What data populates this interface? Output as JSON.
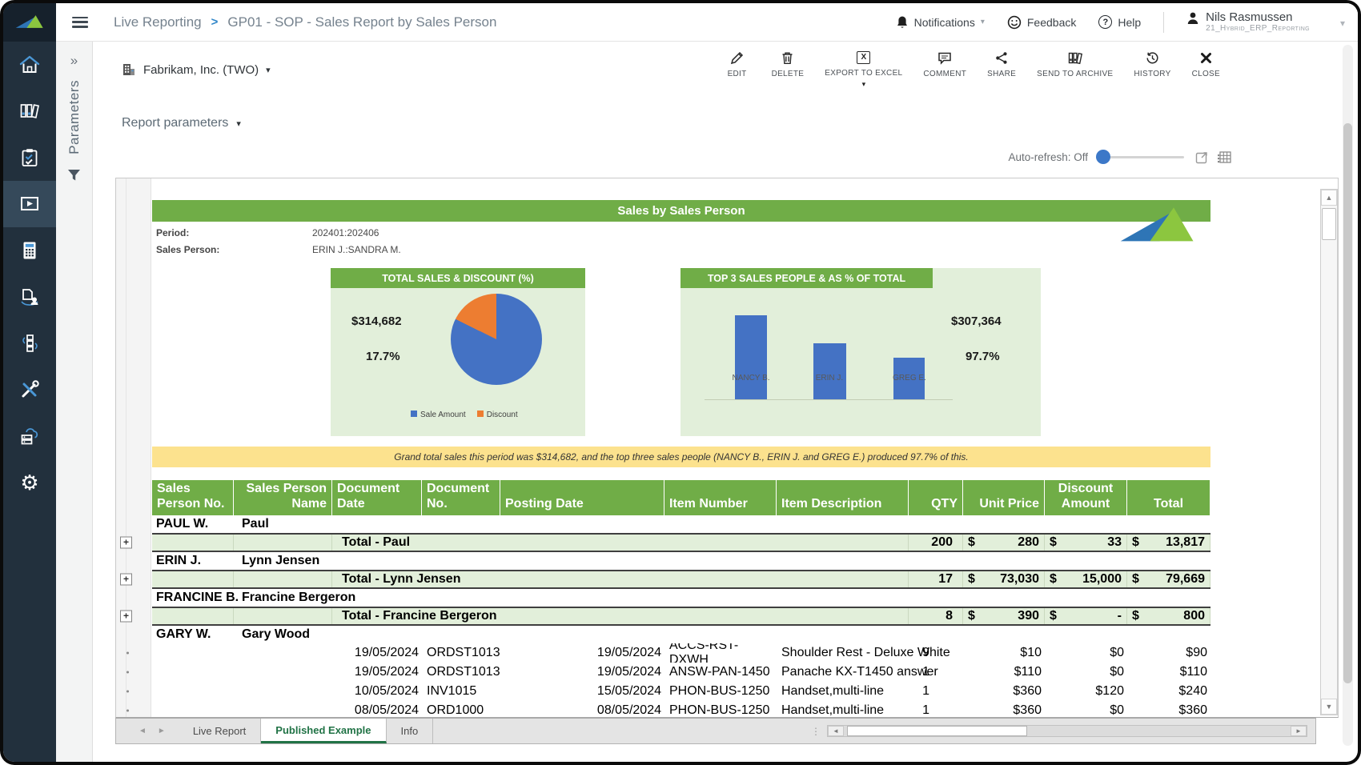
{
  "topbar": {
    "breadcrumb": {
      "section": "Live Reporting",
      "separator": ">",
      "page": "GP01 - SOP - Sales Report by Sales Person"
    },
    "notifications_label": "Notifications",
    "feedback_label": "Feedback",
    "help_label": "Help",
    "help_glyph": "?",
    "user": {
      "name": "Nils Rasmussen",
      "org": "21_Hybrid_ERP_Reporting"
    }
  },
  "sidebar": {
    "icons": [
      "home",
      "document-archive",
      "checklist",
      "live-reporting",
      "calculator",
      "document-user",
      "integrations",
      "admin-tools",
      "data-warehouse",
      "settings"
    ],
    "active": "live-reporting"
  },
  "params_panel": {
    "label": "Parameters"
  },
  "toolbar": {
    "company": "Fabrikam, Inc. (TWO)",
    "actions": [
      {
        "label": "EDIT"
      },
      {
        "label": "DELETE"
      },
      {
        "label": "EXPORT TO EXCEL"
      },
      {
        "label": "COMMENT"
      },
      {
        "label": "SHARE"
      },
      {
        "label": "SEND TO ARCHIVE"
      },
      {
        "label": "HISTORY"
      },
      {
        "label": "CLOSE"
      }
    ]
  },
  "report_parameters": {
    "label": "Report parameters"
  },
  "auto_refresh": {
    "label": "Auto-refresh: Off"
  },
  "report": {
    "title": "Sales by Sales Person",
    "meta": [
      {
        "label": "Period:",
        "value": "202401:202406"
      },
      {
        "label": "Sales Person:",
        "value": "ERIN J.:SANDRA M."
      }
    ],
    "note": "Grand total sales this period was $314,682, and the top three sales people (NANCY B., ERIN J. and GREG E.) produced 97.7% of this."
  },
  "chart_data": [
    {
      "type": "pie",
      "title": "TOTAL SALES & DISCOUNT (%)",
      "labels": [
        "Sale Amount",
        "Discount"
      ],
      "values": [
        82.3,
        17.7
      ],
      "unit": "%",
      "annotations": {
        "total_sales": "$314,682",
        "discount_pct": "17.7%"
      },
      "colors": [
        "#4472C4",
        "#ED7D31"
      ],
      "legend_position": "bottom"
    },
    {
      "type": "bar",
      "title": "TOP 3 SALES PEOPLE & AS % OF TOTAL",
      "categories": [
        "NANCY B.",
        "ERIN J.",
        "GREG E."
      ],
      "values": [
        100,
        67,
        50
      ],
      "values_note": "bars unlabeled in source; heights estimated relative to tallest bar = 100",
      "annotations": {
        "top3_total": "$307,364",
        "top3_pct": "97.7%"
      },
      "color": "#4472C4",
      "grid": false
    }
  ],
  "table": {
    "headers": [
      "Sales Person No.",
      "Sales Person Name",
      "Document Date",
      "Document No.",
      "Posting Date",
      "Item Number",
      "Item Description",
      "QTY",
      "Unit Price",
      "Discount Amount",
      "Total"
    ],
    "rows": [
      {
        "type": "group",
        "sp_no": "PAUL W.",
        "sp_name": "Paul"
      },
      {
        "type": "total",
        "label": "Total - Paul",
        "qty": "200",
        "unit_price": "280",
        "discount": "33",
        "total": "13,817"
      },
      {
        "type": "group",
        "sp_no": "ERIN J.",
        "sp_name": "Lynn Jensen"
      },
      {
        "type": "total",
        "label": "Total - Lynn Jensen",
        "qty": "17",
        "unit_price": "73,030",
        "discount": "15,000",
        "total": "79,669"
      },
      {
        "type": "group",
        "sp_no": "FRANCINE B.",
        "sp_name": "Francine Bergeron"
      },
      {
        "type": "total",
        "label": "Total - Francine Bergeron",
        "qty": "8",
        "unit_price": "390",
        "discount": "-",
        "total": "800"
      },
      {
        "type": "group",
        "sp_no": "GARY W.",
        "sp_name": "Gary Wood"
      },
      {
        "type": "detail",
        "doc_date": "19/05/2024",
        "doc_no": "ORDST1013",
        "posting_date": "19/05/2024",
        "item_number": "ACCS-RST-DXWH",
        "item_desc": "Shoulder Rest - Deluxe White",
        "qty": "9",
        "unit_price": "$10",
        "discount": "$0",
        "total": "$90"
      },
      {
        "type": "detail",
        "doc_date": "19/05/2024",
        "doc_no": "ORDST1013",
        "posting_date": "19/05/2024",
        "item_number": "ANSW-PAN-1450",
        "item_desc": "Panache KX-T1450 answer",
        "qty": "1",
        "unit_price": "$110",
        "discount": "$0",
        "total": "$110"
      },
      {
        "type": "detail",
        "doc_date": "10/05/2024",
        "doc_no": "INV1015",
        "posting_date": "15/05/2024",
        "item_number": "PHON-BUS-1250",
        "item_desc": "Handset,multi-line",
        "qty": "1",
        "unit_price": "$360",
        "discount": "$120",
        "total": "$240"
      },
      {
        "type": "detail",
        "clipped": true,
        "doc_date": "08/05/2024",
        "doc_no": "ORD1000",
        "posting_date": "08/05/2024",
        "item_number": "PHON-BUS-1250",
        "item_desc": "Handset,multi-line",
        "qty": "1",
        "unit_price": "$360",
        "discount": "$0",
        "total": "$360"
      }
    ]
  },
  "sheet_tabs": {
    "tabs": [
      "Live Report",
      "Published Example",
      "Info"
    ],
    "active": "Published Example"
  },
  "colors": {
    "header_green": "#70AD47",
    "panel_green": "#E2EFDA",
    "note_yellow": "#FCE28E",
    "series_blue": "#4472C4",
    "series_orange": "#ED7D31",
    "sidebar_dark": "#22303D",
    "active_tab_green": "#217346",
    "slider_blue": "#3C78C8"
  }
}
